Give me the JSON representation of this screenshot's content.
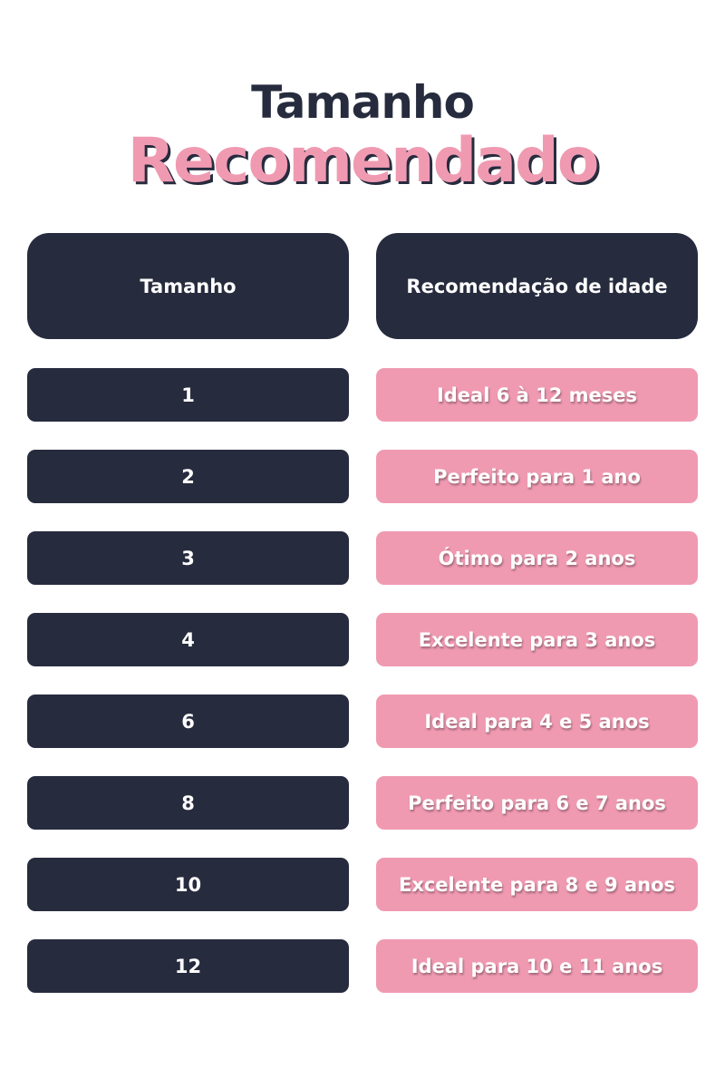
{
  "title": {
    "line1": "Tamanho",
    "line2": "Recomendado"
  },
  "colors": {
    "navy": "#272b3e",
    "pink": "#f09ab2"
  },
  "table": {
    "headers": [
      "Tamanho",
      "Recomendação de idade"
    ],
    "rows": [
      {
        "size": "1",
        "age": "Ideal 6 à 12 meses"
      },
      {
        "size": "2",
        "age": "Perfeito para 1 ano"
      },
      {
        "size": "3",
        "age": "Ótimo para 2 anos"
      },
      {
        "size": "4",
        "age": "Excelente para 3 anos"
      },
      {
        "size": "6",
        "age": "Ideal para 4 e 5 anos"
      },
      {
        "size": "8",
        "age": "Perfeito para 6 e 7 anos"
      },
      {
        "size": "10",
        "age": "Excelente para 8 e 9 anos"
      },
      {
        "size": "12",
        "age": "Ideal para 10 e 11 anos"
      }
    ]
  }
}
